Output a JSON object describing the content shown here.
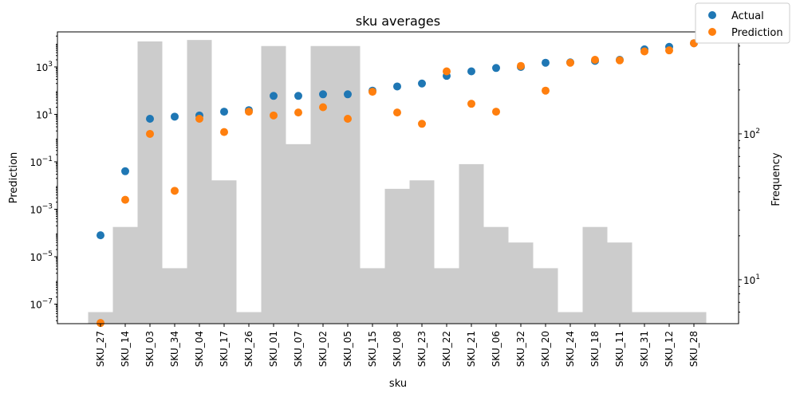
{
  "chart_data": {
    "type": "scatter",
    "title": "sku averages",
    "xlabel": "sku",
    "ylabel": "Prediction",
    "y2label": "Frequency",
    "yscale": "log",
    "y2scale": "log",
    "ylim": [
      1.5e-08,
      30000
    ],
    "y2lim": [
      5,
      500
    ],
    "y_ticks": [
      {
        "exp": -7,
        "label": "10^{-7}"
      },
      {
        "exp": -5,
        "label": "10^{-5}"
      },
      {
        "exp": -3,
        "label": "10^{-3}"
      },
      {
        "exp": -1,
        "label": "10^{-1}"
      },
      {
        "exp": 1,
        "label": "10^{1}"
      },
      {
        "exp": 3,
        "label": "10^{3}"
      }
    ],
    "y2_ticks": [
      {
        "exp": 1,
        "label": "10^{1}"
      },
      {
        "exp": 2,
        "label": "10^{2}"
      }
    ],
    "grid": false,
    "legend_position": "top-right",
    "categories": [
      "SKU_27",
      "SKU_14",
      "SKU_03",
      "SKU_34",
      "SKU_04",
      "SKU_17",
      "SKU_26",
      "SKU_01",
      "SKU_07",
      "SKU_02",
      "SKU_05",
      "SKU_15",
      "SKU_08",
      "SKU_23",
      "SKU_22",
      "SKU_21",
      "SKU_06",
      "SKU_32",
      "SKU_20",
      "SKU_24",
      "SKU_18",
      "SKU_11",
      "SKU_31",
      "SKU_12",
      "SKU_28"
    ],
    "series": [
      {
        "name": "Actual",
        "color": "#1f77b4",
        "values": [
          8e-05,
          0.04,
          6.5,
          8,
          9,
          13,
          15,
          60,
          60,
          70,
          70,
          100,
          150,
          200,
          420,
          650,
          900,
          1000,
          1500,
          1550,
          1800,
          2000,
          5500,
          7000,
          10000
        ]
      },
      {
        "name": "Prediction",
        "color": "#ff7f0e",
        "values": [
          1.6e-08,
          0.0025,
          1.5,
          0.006,
          6.5,
          1.8,
          13,
          9,
          12,
          20,
          6.5,
          90,
          12,
          4,
          650,
          28,
          13,
          1100,
          100,
          1500,
          2000,
          1900,
          4500,
          5000,
          10000
        ]
      }
    ],
    "frequency_bars": {
      "name": "Frequency",
      "color": "#cccccc",
      "values": [
        6,
        23,
        430,
        12,
        440,
        48,
        6,
        400,
        85,
        400,
        400,
        12,
        42,
        48,
        12,
        62,
        23,
        18,
        12,
        6,
        23,
        18,
        6,
        6,
        6
      ]
    }
  }
}
